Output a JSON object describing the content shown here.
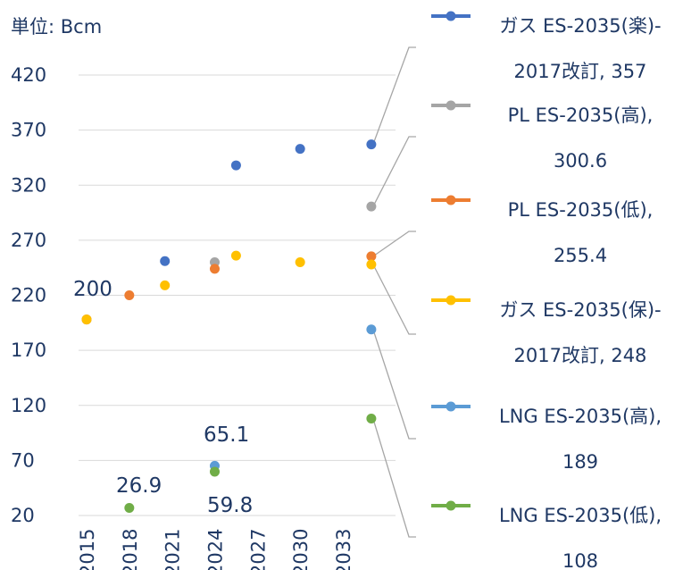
{
  "chart_data": {
    "type": "scatter",
    "title": "",
    "unit_label": "単位: Bcm",
    "xlabel": "",
    "ylabel": "",
    "y_ticks": [
      20,
      70,
      120,
      170,
      220,
      270,
      320,
      370,
      420
    ],
    "x_ticks": [
      "2015",
      "2018",
      "2021",
      "2024",
      "2027",
      "2030",
      "2033"
    ],
    "xlim": [
      2015,
      2036.7
    ],
    "ylim": [
      20,
      420
    ],
    "grid": true,
    "legend_position": "right",
    "series": [
      {
        "name": "ガス ES-2035(楽)-2017改訂, 357",
        "color": "#4472c4",
        "points": [
          [
            2020.5,
            251
          ],
          [
            2025.5,
            338
          ],
          [
            2030,
            353
          ],
          [
            2035,
            357
          ]
        ]
      },
      {
        "name": "PL ES-2035(高), 300.6",
        "color": "#a5a5a5",
        "points": [
          [
            2015,
            198
          ],
          [
            2024,
            250
          ],
          [
            2035,
            300.6
          ]
        ]
      },
      {
        "name": "PL ES-2035(低), 255.4",
        "color": "#ed7d31",
        "points": [
          [
            2015,
            198
          ],
          [
            2018,
            220
          ],
          [
            2024,
            244
          ],
          [
            2035,
            255.4
          ]
        ]
      },
      {
        "name": "ガス ES-2035(保)-2017改訂, 248",
        "color": "#ffc000",
        "points": [
          [
            2015,
            198
          ],
          [
            2020.5,
            229
          ],
          [
            2025.5,
            256
          ],
          [
            2030,
            250
          ],
          [
            2035,
            248
          ]
        ]
      },
      {
        "name": "LNG ES-2035(高), 189",
        "color": "#5b9bd5",
        "points": [
          [
            2024,
            65.1
          ],
          [
            2035,
            189
          ]
        ]
      },
      {
        "name": "LNG ES-2035(低), 108",
        "color": "#70ad47",
        "points": [
          [
            2018,
            26.9
          ],
          [
            2024,
            59.8
          ],
          [
            2035,
            108
          ]
        ]
      }
    ],
    "data_labels": [
      "200",
      "26.9",
      "65.1",
      "59.8"
    ],
    "legend_entries": [
      {
        "line1": "ガス ES-2035(楽)-",
        "line2": "2017改訂, 357"
      },
      {
        "line1": "PL ES-2035(高),",
        "line2": "300.6"
      },
      {
        "line1": "PL ES-2035(低),",
        "line2": "255.4"
      },
      {
        "line1": "ガス ES-2035(保)-",
        "line2": "2017改訂, 248"
      },
      {
        "line1": "LNG ES-2035(高),",
        "line2": "189"
      },
      {
        "line1": "LNG ES-2035(低),",
        "line2": "108"
      }
    ]
  }
}
